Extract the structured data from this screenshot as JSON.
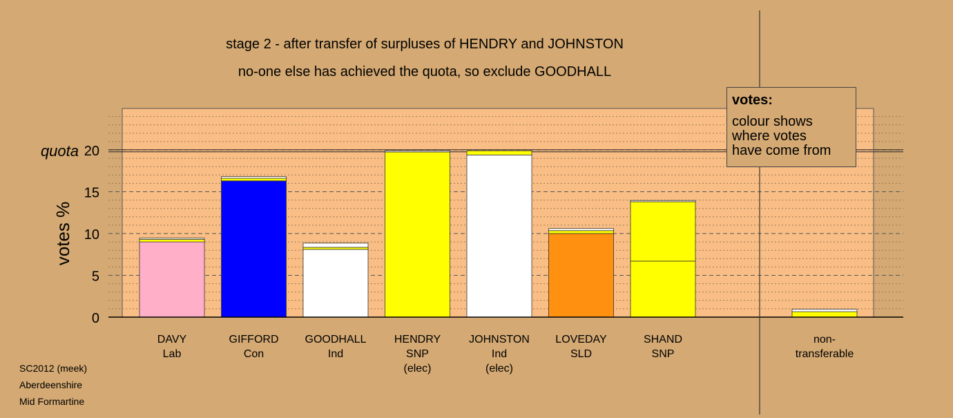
{
  "title_lines": [
    "stage 2 - after transfer of surpluses of HENDRY and JOHNSTON",
    "no-one else has achieved the quota, so exclude GOODHALL"
  ],
  "footer": [
    "SC2012 (meek)",
    "Aberdeenshire",
    "Mid Formartine"
  ],
  "legend": {
    "title": "votes:",
    "lines": [
      "colour shows",
      "where votes",
      "have come from"
    ]
  },
  "colors": {
    "background": "#D4A973",
    "plot_bg": "#F9BE85",
    "Lab": "#FFB0C8",
    "Con": "#0000FF",
    "Ind": "#FFFFFF",
    "SNP": "#FFFF00",
    "SLD": "#FF9010"
  },
  "chart_data": {
    "type": "bar",
    "stacked": true,
    "ylabel": "votes %",
    "ylim": [
      0,
      25
    ],
    "yticks": [
      0,
      5,
      10,
      15,
      20
    ],
    "quota": {
      "label": "quota",
      "value": 19.9
    },
    "categories": [
      {
        "lines": [
          "DAVY",
          "Lab"
        ],
        "segments": [
          {
            "value": 9.0,
            "color": "Lab"
          },
          {
            "value": 0.3,
            "color": "SNP"
          },
          {
            "value": 0.15,
            "color": "Ind"
          }
        ]
      },
      {
        "lines": [
          "GIFFORD",
          "Con"
        ],
        "segments": [
          {
            "value": 16.3,
            "color": "Con"
          },
          {
            "value": 0.3,
            "color": "SNP"
          },
          {
            "value": 0.2,
            "color": "Ind"
          }
        ]
      },
      {
        "lines": [
          "GOODHALL",
          "Ind"
        ],
        "segments": [
          {
            "value": 8.1,
            "color": "Ind"
          },
          {
            "value": 0.25,
            "color": "SNP"
          },
          {
            "value": 0.5,
            "color": "Ind"
          }
        ]
      },
      {
        "lines": [
          "HENDRY",
          "SNP",
          "(elec)"
        ],
        "segments": [
          {
            "value": 19.75,
            "color": "SNP"
          },
          {
            "value": 0.15,
            "color": "Ind"
          }
        ]
      },
      {
        "lines": [
          "JOHNSTON",
          "Ind",
          "(elec)"
        ],
        "segments": [
          {
            "value": 19.4,
            "color": "Ind"
          },
          {
            "value": 0.5,
            "color": "SNP"
          }
        ]
      },
      {
        "lines": [
          "LOVEDAY",
          "SLD"
        ],
        "segments": [
          {
            "value": 10.0,
            "color": "SLD"
          },
          {
            "value": 0.35,
            "color": "SNP"
          },
          {
            "value": 0.25,
            "color": "Ind"
          }
        ]
      },
      {
        "lines": [
          "SHAND",
          "SNP"
        ],
        "segments": [
          {
            "value": 6.7,
            "color": "SNP"
          },
          {
            "value": 7.1,
            "color": "SNP"
          },
          {
            "value": 0.15,
            "color": "Ind"
          }
        ]
      }
    ],
    "nontransferable": {
      "lines": [
        "non-",
        "transferable"
      ],
      "segments": [
        {
          "value": 0.65,
          "color": "SNP"
        },
        {
          "value": 0.3,
          "color": "Ind"
        }
      ]
    }
  }
}
